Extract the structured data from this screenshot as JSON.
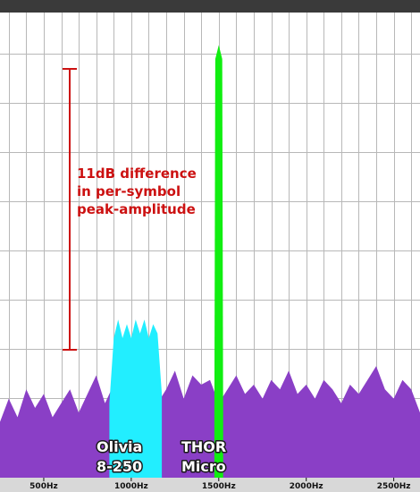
{
  "annotation": {
    "lines": [
      "11dB difference",
      "in per-symbol",
      "peak-amplitude"
    ],
    "color": "#cc1111"
  },
  "labels": {
    "olivia": [
      "Olivia",
      "8-250"
    ],
    "thor": [
      "THOR",
      "Micro"
    ]
  },
  "colors": {
    "background": "#ffffff",
    "top_bar": "#3a3a3a",
    "grid": "#b8b8b8",
    "noise": "#8a3fc6",
    "olivia": "#22eeff",
    "thor": "#11ee11",
    "label_text": "#ffffff",
    "label_outline": "#1a1a1a",
    "axis_bar": "#d8d8d8",
    "axis_text": "#111111"
  },
  "chart_data": {
    "type": "area",
    "x_unit": "Hz",
    "xlim": [
      250,
      2650
    ],
    "x_ticks": [
      {
        "value": 500,
        "label": "500Hz"
      },
      {
        "value": 1000,
        "label": "1000Hz"
      },
      {
        "value": 1500,
        "label": "1500Hz"
      },
      {
        "value": 2000,
        "label": "2000Hz"
      },
      {
        "value": 2500,
        "label": "2500Hz"
      }
    ],
    "grid": true,
    "marker_span_db": 11,
    "series": [
      {
        "id": "noise",
        "x": [
          250,
          300,
          350,
          400,
          450,
          500,
          550,
          600,
          650,
          700,
          750,
          800,
          850,
          900,
          950,
          1000,
          1050,
          1100,
          1150,
          1200,
          1250,
          1300,
          1350,
          1400,
          1450,
          1500,
          1550,
          1600,
          1650,
          1700,
          1750,
          1800,
          1850,
          1900,
          1950,
          2000,
          2050,
          2100,
          2150,
          2200,
          2250,
          2300,
          2350,
          2400,
          2450,
          2500,
          2550,
          2600,
          2650
        ],
        "level": [
          0.12,
          0.17,
          0.13,
          0.19,
          0.15,
          0.18,
          0.13,
          0.16,
          0.19,
          0.14,
          0.18,
          0.22,
          0.16,
          0.2,
          0.19,
          0.17,
          0.21,
          0.18,
          0.16,
          0.19,
          0.23,
          0.17,
          0.22,
          0.2,
          0.21,
          0.16,
          0.19,
          0.22,
          0.18,
          0.2,
          0.17,
          0.21,
          0.19,
          0.23,
          0.18,
          0.2,
          0.17,
          0.21,
          0.19,
          0.16,
          0.2,
          0.18,
          0.21,
          0.24,
          0.19,
          0.17,
          0.21,
          0.19,
          0.14
        ]
      },
      {
        "id": "olivia",
        "x": [
          875,
          900,
          925,
          950,
          975,
          1000,
          1025,
          1050,
          1075,
          1100,
          1125,
          1150,
          1175
        ],
        "level": [
          0.16,
          0.3,
          0.34,
          0.3,
          0.33,
          0.3,
          0.34,
          0.31,
          0.34,
          0.3,
          0.33,
          0.31,
          0.18
        ]
      },
      {
        "id": "thor",
        "x": [
          1475,
          1480,
          1500,
          1520,
          1525
        ],
        "level": [
          0.14,
          0.9,
          0.93,
          0.9,
          0.14
        ]
      }
    ]
  }
}
